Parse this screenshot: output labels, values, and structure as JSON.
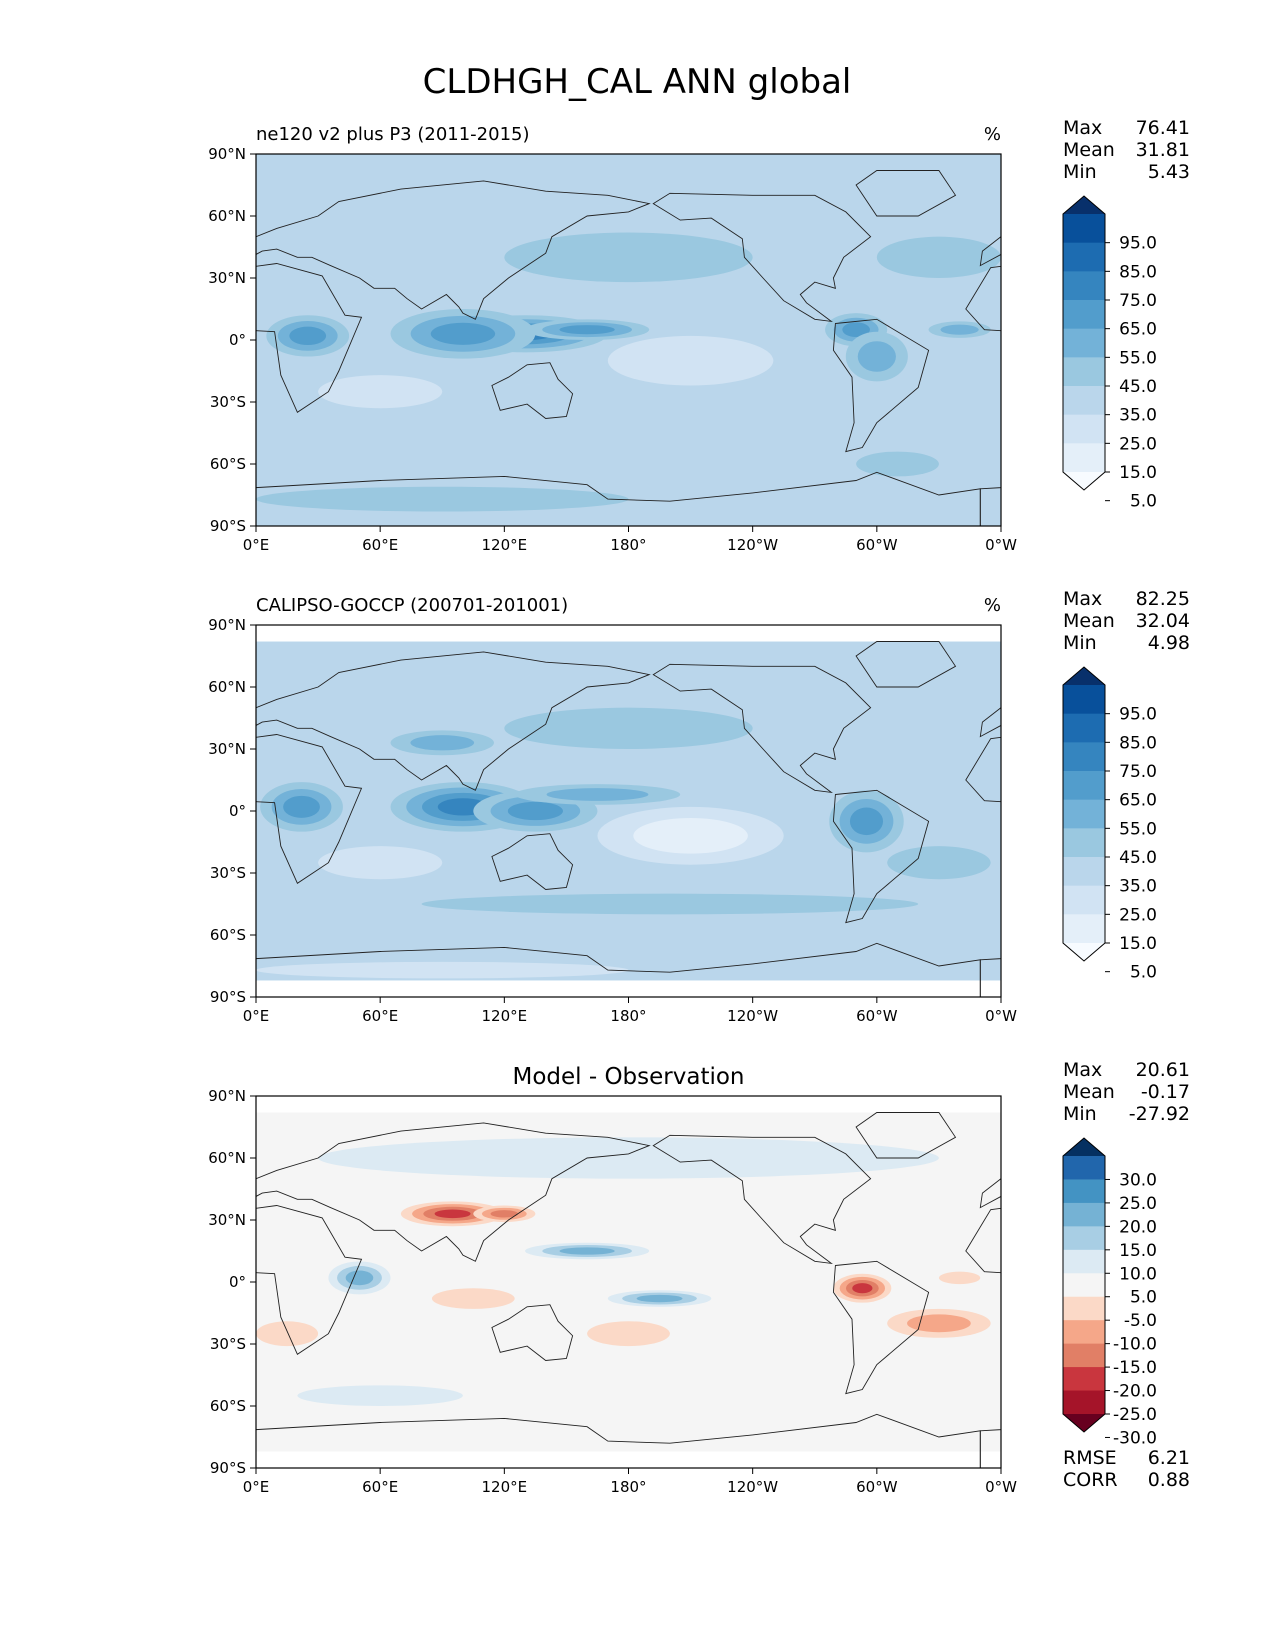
{
  "figure": {
    "title": "CLDHGH_CAL ANN global"
  },
  "lat_ticks": [
    "90°N",
    "60°N",
    "30°N",
    "0°",
    "30°S",
    "60°S",
    "90°S"
  ],
  "lon_ticks": [
    "0°E",
    "60°E",
    "120°E",
    "180°",
    "120°W",
    "60°W",
    "0°W"
  ],
  "chart_data": [
    {
      "type": "heatmap",
      "panel": "model",
      "title_left": "ne120 v2 plus P3 (2011-2015)",
      "title_center": "",
      "units": "%",
      "stats": [
        {
          "label": "Max",
          "value": "76.41"
        },
        {
          "label": "Mean",
          "value": "31.81"
        },
        {
          "label": "Min",
          "value": "5.43"
        }
      ],
      "colorbar_labels": [
        "95.0",
        "85.0",
        "75.0",
        "65.0",
        "55.0",
        "45.0",
        "35.0",
        "25.0",
        "15.0",
        "5.0"
      ],
      "colorbar_colors": [
        "#f7fbff",
        "#e4eff9",
        "#d1e3f3",
        "#bad6eb",
        "#9ac8e0",
        "#73b2d8",
        "#529dcc",
        "#3585bf",
        "#1d6cb1",
        "#08509b",
        "#08306b"
      ],
      "extra_stats": [],
      "xlim": [
        0,
        360
      ],
      "ylim": [
        -90,
        90
      ],
      "coverage_lat": [
        -90,
        90
      ],
      "base_level": 3,
      "blobs": [
        {
          "lon": 25,
          "lat": 2,
          "rx": 20,
          "ry": 10,
          "level": 6
        },
        {
          "lon": 130,
          "lat": 3,
          "rx": 40,
          "ry": 9,
          "level": 7
        },
        {
          "lon": 100,
          "lat": 3,
          "rx": 35,
          "ry": 12,
          "level": 6
        },
        {
          "lon": 160,
          "lat": 5,
          "rx": 30,
          "ry": 5,
          "level": 6
        },
        {
          "lon": 290,
          "lat": 5,
          "rx": 15,
          "ry": 8,
          "level": 6
        },
        {
          "lon": 300,
          "lat": -8,
          "rx": 15,
          "ry": 12,
          "level": 5
        },
        {
          "lon": 210,
          "lat": -10,
          "rx": 40,
          "ry": 12,
          "level": 2
        },
        {
          "lon": 60,
          "lat": -25,
          "rx": 30,
          "ry": 8,
          "level": 2
        },
        {
          "lon": 180,
          "lat": 40,
          "rx": 60,
          "ry": 12,
          "level": 4
        },
        {
          "lon": 200,
          "lat": 65,
          "rx": 40,
          "ry": 8,
          "level": 3
        },
        {
          "lon": 330,
          "lat": 40,
          "rx": 30,
          "ry": 10,
          "level": 4
        },
        {
          "lon": 90,
          "lat": -77,
          "rx": 90,
          "ry": 6,
          "level": 4
        },
        {
          "lon": 310,
          "lat": -60,
          "rx": 20,
          "ry": 6,
          "level": 4
        },
        {
          "lon": 340,
          "lat": 5,
          "rx": 15,
          "ry": 4,
          "level": 5
        }
      ]
    },
    {
      "type": "heatmap",
      "panel": "observation",
      "title_left": "CALIPSO-GOCCP (200701-201001)",
      "title_center": "",
      "units": "%",
      "stats": [
        {
          "label": "Max",
          "value": "82.25"
        },
        {
          "label": "Mean",
          "value": "32.04"
        },
        {
          "label": "Min",
          "value": "4.98"
        }
      ],
      "colorbar_labels": [
        "95.0",
        "85.0",
        "75.0",
        "65.0",
        "55.0",
        "45.0",
        "35.0",
        "25.0",
        "15.0",
        "5.0"
      ],
      "colorbar_colors": [
        "#f7fbff",
        "#e4eff9",
        "#d1e3f3",
        "#bad6eb",
        "#9ac8e0",
        "#73b2d8",
        "#529dcc",
        "#3585bf",
        "#1d6cb1",
        "#08509b",
        "#08306b"
      ],
      "extra_stats": [],
      "xlim": [
        0,
        360
      ],
      "ylim": [
        -90,
        90
      ],
      "coverage_lat": [
        -82,
        82
      ],
      "base_level": 3,
      "blobs": [
        {
          "lon": 22,
          "lat": 2,
          "rx": 20,
          "ry": 12,
          "level": 6
        },
        {
          "lon": 100,
          "lat": 2,
          "rx": 35,
          "ry": 12,
          "level": 7
        },
        {
          "lon": 135,
          "lat": 0,
          "rx": 30,
          "ry": 10,
          "level": 6
        },
        {
          "lon": 90,
          "lat": 33,
          "rx": 25,
          "ry": 6,
          "level": 5
        },
        {
          "lon": 295,
          "lat": -5,
          "rx": 18,
          "ry": 15,
          "level": 6
        },
        {
          "lon": 210,
          "lat": -12,
          "rx": 45,
          "ry": 14,
          "level": 1
        },
        {
          "lon": 60,
          "lat": -25,
          "rx": 30,
          "ry": 8,
          "level": 2
        },
        {
          "lon": 180,
          "lat": 40,
          "rx": 60,
          "ry": 10,
          "level": 4
        },
        {
          "lon": 165,
          "lat": 8,
          "rx": 40,
          "ry": 5,
          "level": 5
        },
        {
          "lon": 330,
          "lat": -25,
          "rx": 25,
          "ry": 8,
          "level": 4
        },
        {
          "lon": 200,
          "lat": -45,
          "rx": 120,
          "ry": 5,
          "level": 4
        },
        {
          "lon": 90,
          "lat": -77,
          "rx": 90,
          "ry": 4,
          "level": 2
        }
      ]
    },
    {
      "type": "heatmap",
      "panel": "difference",
      "title_left": "",
      "title_center": "Model - Observation",
      "units": "",
      "stats": [
        {
          "label": "Max",
          "value": "20.61"
        },
        {
          "label": "Mean",
          "value": "-0.17"
        },
        {
          "label": "Min",
          "value": "-27.92"
        }
      ],
      "colorbar_labels": [
        "30.0",
        "25.0",
        "20.0",
        "15.0",
        "10.0",
        "5.0",
        "-5.0",
        "-10.0",
        "-15.0",
        "-20.0",
        "-25.0",
        "-30.0"
      ],
      "colorbar_colors": [
        "#67001f",
        "#a51429",
        "#c9363e",
        "#e17f66",
        "#f5a789",
        "#fbd9c7",
        "#f5f5f5",
        "#dceaf3",
        "#a8cee4",
        "#75b2d4",
        "#4393c3",
        "#2166ac",
        "#053061"
      ],
      "extra_stats": [
        {
          "label": "RMSE",
          "value": "6.21"
        },
        {
          "label": "CORR",
          "value": "0.88"
        }
      ],
      "xlim": [
        0,
        360
      ],
      "ylim": [
        -90,
        90
      ],
      "coverage_lat": [
        -82,
        82
      ],
      "base_level": 6,
      "blobs": [
        {
          "lon": 95,
          "lat": 33,
          "rx": 25,
          "ry": 6,
          "level": 2
        },
        {
          "lon": 120,
          "lat": 33,
          "rx": 15,
          "ry": 4,
          "level": 3
        },
        {
          "lon": 293,
          "lat": -3,
          "rx": 14,
          "ry": 7,
          "level": 2
        },
        {
          "lon": 330,
          "lat": -20,
          "rx": 25,
          "ry": 7,
          "level": 4
        },
        {
          "lon": 105,
          "lat": -8,
          "rx": 20,
          "ry": 5,
          "level": 5
        },
        {
          "lon": 50,
          "lat": 2,
          "rx": 15,
          "ry": 8,
          "level": 9
        },
        {
          "lon": 160,
          "lat": 15,
          "rx": 30,
          "ry": 4,
          "level": 9
        },
        {
          "lon": 195,
          "lat": -8,
          "rx": 25,
          "ry": 4,
          "level": 9
        },
        {
          "lon": 180,
          "lat": 60,
          "rx": 150,
          "ry": 10,
          "level": 7
        },
        {
          "lon": 60,
          "lat": -55,
          "rx": 40,
          "ry": 5,
          "level": 7
        },
        {
          "lon": 180,
          "lat": -25,
          "rx": 20,
          "ry": 6,
          "level": 5
        },
        {
          "lon": 15,
          "lat": -25,
          "rx": 15,
          "ry": 6,
          "level": 5
        },
        {
          "lon": 340,
          "lat": 2,
          "rx": 10,
          "ry": 3,
          "level": 5
        }
      ]
    }
  ]
}
